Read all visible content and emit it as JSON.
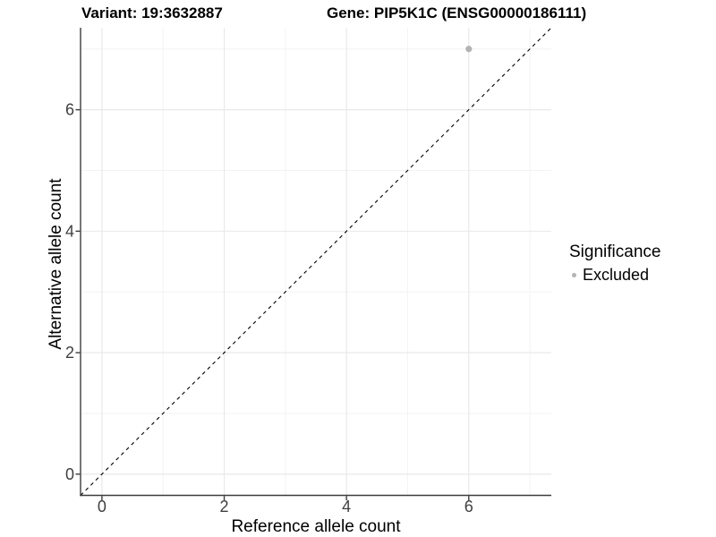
{
  "header": {
    "variant_title": "Variant: 19:3632887",
    "gene_title": "Gene: PIP5K1C (ENSG00000186111)"
  },
  "chart_data": {
    "type": "scatter",
    "xlabel": "Reference allele count",
    "ylabel": "Alternative allele count",
    "xlim": [
      -0.35,
      7.35
    ],
    "ylim": [
      -0.35,
      7.35
    ],
    "x_major_ticks": [
      0,
      2,
      4,
      6
    ],
    "y_major_ticks": [
      0,
      2,
      4,
      6
    ],
    "x_minor_ticks": [
      1,
      3,
      5,
      7
    ],
    "y_minor_ticks": [
      1,
      3,
      5,
      7
    ],
    "grid": true,
    "points": [
      {
        "x": 6,
        "y": 7,
        "series": "Excluded"
      }
    ],
    "identity_line": {
      "slope": 1,
      "intercept": 0,
      "style": "dashed"
    },
    "legend": {
      "position": "right",
      "title": "Significance",
      "entries": [
        {
          "label": "Excluded",
          "color": "#b3b3b3"
        }
      ]
    }
  },
  "colors": {
    "background": "#ffffff",
    "grid_major": "#e9e9e9",
    "grid_minor": "#f3f3f3",
    "axis_line": "#3c3c3c",
    "tick_label": "#404040",
    "point": "#b3b3b3",
    "identity_line": "#000000"
  }
}
